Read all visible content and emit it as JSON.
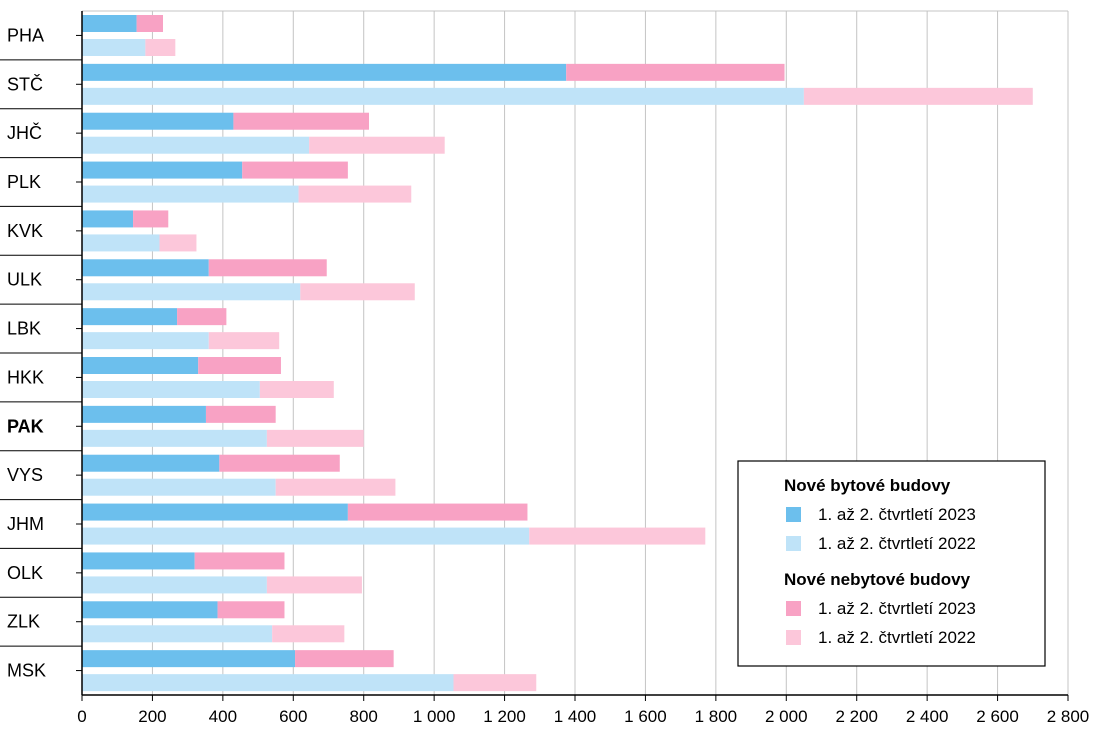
{
  "chart_data": {
    "type": "bar",
    "orientation": "horizontal",
    "stacked": true,
    "categories": [
      "PHA",
      "STČ",
      "JHČ",
      "PLK",
      "KVK",
      "ULK",
      "LBK",
      "HKK",
      "PAK",
      "VYS",
      "JHM",
      "OLK",
      "ZLK",
      "MSK"
    ],
    "highlighted_category": "PAK",
    "xlim": [
      0,
      2800
    ],
    "xticks": [
      0,
      200,
      400,
      600,
      800,
      1000,
      1200,
      1400,
      1600,
      1800,
      2000,
      2200,
      2400,
      2600,
      2800
    ],
    "xtick_labels": [
      "0",
      "200",
      "400",
      "600",
      "800",
      "1 000",
      "1 200",
      "1 400",
      "1 600",
      "1 800",
      "2 000",
      "2 200",
      "2 400",
      "2 600",
      "2 800"
    ],
    "grid": "vertical",
    "series": [
      {
        "name": "1. až 2. čtvrtletí 2023",
        "group": "Nové bytové budovy",
        "color": "#6cbfed",
        "values": [
          155,
          1375,
          430,
          455,
          145,
          360,
          270,
          330,
          352,
          390,
          755,
          320,
          385,
          605
        ]
      },
      {
        "name": "1. až 2. čtvrtletí 2023",
        "group": "Nové nebytové budovy",
        "color": "#f8a2c4",
        "values": [
          75,
          620,
          385,
          300,
          100,
          335,
          140,
          235,
          198,
          342,
          510,
          255,
          190,
          280
        ]
      },
      {
        "name": "1. až 2. čtvrtletí 2022",
        "group": "Nové bytové budovy",
        "color": "#bfe3f8",
        "values": [
          180,
          2050,
          645,
          615,
          220,
          620,
          360,
          505,
          525,
          550,
          1270,
          525,
          540,
          1055
        ]
      },
      {
        "name": "1. až 2. čtvrtletí 2022",
        "group": "Nové nebytové budovy",
        "color": "#fcc7da",
        "values": [
          85,
          650,
          385,
          320,
          105,
          325,
          200,
          210,
          275,
          340,
          500,
          270,
          205,
          235
        ]
      }
    ],
    "legend": {
      "position": "bottom-right",
      "groups": [
        {
          "title": "Nové bytové budovy",
          "items": [
            {
              "label": "1. až 2. čtvrtletí 2023",
              "color": "#6cbfed"
            },
            {
              "label": "1. až 2. čtvrtletí 2022",
              "color": "#bfe3f8"
            }
          ]
        },
        {
          "title": "Nové nebytové budovy",
          "items": [
            {
              "label": "1. až 2. čtvrtletí 2023",
              "color": "#f8a2c4"
            },
            {
              "label": "1. až 2. čtvrtletí 2022",
              "color": "#fcc7da"
            }
          ]
        }
      ]
    }
  }
}
